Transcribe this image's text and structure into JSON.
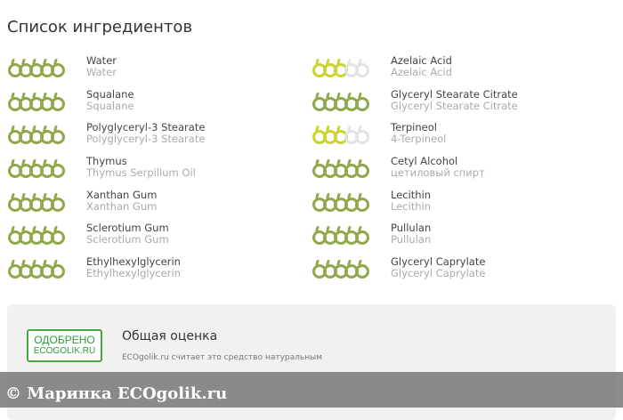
{
  "title": "Список ингредиентов",
  "colors": {
    "green": "#8fa84a",
    "yellow": "#c9d42c",
    "empty": "#e3e3e3"
  },
  "ingredients": [
    {
      "name": "Water",
      "alt": "Water",
      "rating": 5
    },
    {
      "name": "Azelaic Acid",
      "alt": "Azelaic Acid",
      "rating": 3
    },
    {
      "name": "Squalane",
      "alt": "Squalane",
      "rating": 5
    },
    {
      "name": "Glyceryl Stearate Citrate",
      "alt": "Glyceryl Stearate Citrate",
      "rating": 5
    },
    {
      "name": "Polyglyceryl-3 Stearate",
      "alt": "Polyglyceryl-3 Stearate",
      "rating": 5
    },
    {
      "name": "Terpineol",
      "alt": "4-Terpineol",
      "rating": 3
    },
    {
      "name": "Thymus",
      "alt": "Thymus Serpillum Oil",
      "rating": 5
    },
    {
      "name": "Cetyl Alcohol",
      "alt": "цетиловый спирт",
      "rating": 5
    },
    {
      "name": "Xanthan Gum",
      "alt": "Xanthan Gum",
      "rating": 5
    },
    {
      "name": "Lecithin",
      "alt": "Lecithin",
      "rating": 5
    },
    {
      "name": "Sclerotium Gum",
      "alt": "Sclerotium Gum",
      "rating": 5
    },
    {
      "name": "Pullulan",
      "alt": "Pullulan",
      "rating": 5
    },
    {
      "name": "Ethylhexylglycerin",
      "alt": "Ethylhexylglycerin",
      "rating": 5
    },
    {
      "name": "Glyceryl Caprylate",
      "alt": "Glyceryl Caprylate",
      "rating": 5
    }
  ],
  "summary": {
    "badge_line1": "ОДОБРЕНО",
    "badge_line2": "ECOGOLIK.RU",
    "title": "Общая оценка",
    "text": "ECOgolik.ru считает это средство натуральным"
  },
  "watermark": "© Маринка  ECOgolik.ru"
}
